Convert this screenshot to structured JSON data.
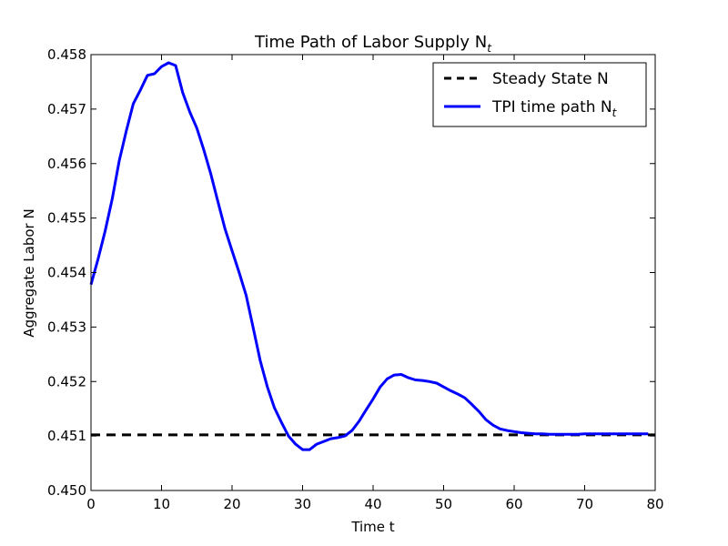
{
  "chart_data": {
    "type": "line",
    "title": "Time Path of Labor Supply N",
    "title_subscript": "t",
    "xlabel": "Time t",
    "ylabel": "Aggregate Labor N",
    "xlim": [
      0,
      80
    ],
    "ylim": [
      0.45,
      0.458
    ],
    "xticks": [
      0,
      10,
      20,
      30,
      40,
      50,
      60,
      70,
      80
    ],
    "yticks": [
      "0.450",
      "0.451",
      "0.452",
      "0.453",
      "0.454",
      "0.455",
      "0.456",
      "0.457",
      "0.458"
    ],
    "grid": false,
    "legend_position": "top-right",
    "series": [
      {
        "name": "Steady State N",
        "style": "dashed",
        "color": "#000000",
        "x": [
          0,
          80
        ],
        "y": [
          0.45102,
          0.45102
        ]
      },
      {
        "name": "TPI time path N",
        "name_subscript": "t",
        "style": "solid",
        "color": "#0000ff",
        "x": [
          0,
          1,
          2,
          3,
          4,
          5,
          6,
          7,
          8,
          9,
          10,
          11,
          12,
          13,
          14,
          15,
          16,
          17,
          18,
          19,
          20,
          21,
          22,
          23,
          24,
          25,
          26,
          27,
          28,
          29,
          30,
          31,
          32,
          33,
          34,
          35,
          36,
          37,
          38,
          39,
          40,
          41,
          42,
          43,
          44,
          45,
          46,
          47,
          48,
          49,
          50,
          51,
          52,
          53,
          54,
          55,
          56,
          57,
          58,
          59,
          60,
          61,
          62,
          63,
          64,
          65,
          66,
          67,
          68,
          69,
          70,
          71,
          72,
          73,
          74,
          75,
          76,
          77,
          78,
          79
        ],
        "y": [
          0.45378,
          0.45425,
          0.45476,
          0.45535,
          0.45605,
          0.4566,
          0.4571,
          0.45735,
          0.45762,
          0.45765,
          0.45778,
          0.45785,
          0.4578,
          0.4573,
          0.45695,
          0.45665,
          0.45625,
          0.4558,
          0.4553,
          0.4548,
          0.4544,
          0.454,
          0.45358,
          0.45298,
          0.45238,
          0.4519,
          0.45152,
          0.45125,
          0.451,
          0.45085,
          0.45075,
          0.45075,
          0.45085,
          0.4509,
          0.45095,
          0.45097,
          0.451,
          0.4511,
          0.45127,
          0.45148,
          0.45168,
          0.4519,
          0.45205,
          0.45212,
          0.45213,
          0.45207,
          0.45203,
          0.45202,
          0.452,
          0.45197,
          0.4519,
          0.45183,
          0.45177,
          0.4517,
          0.45158,
          0.45145,
          0.4513,
          0.4512,
          0.45113,
          0.4511,
          0.45108,
          0.45106,
          0.45105,
          0.45104,
          0.45104,
          0.45103,
          0.45103,
          0.45103,
          0.45103,
          0.45103,
          0.45104,
          0.45104,
          0.45104,
          0.45104,
          0.45104,
          0.45104,
          0.45104,
          0.45104,
          0.45104,
          0.45104
        ]
      }
    ]
  }
}
